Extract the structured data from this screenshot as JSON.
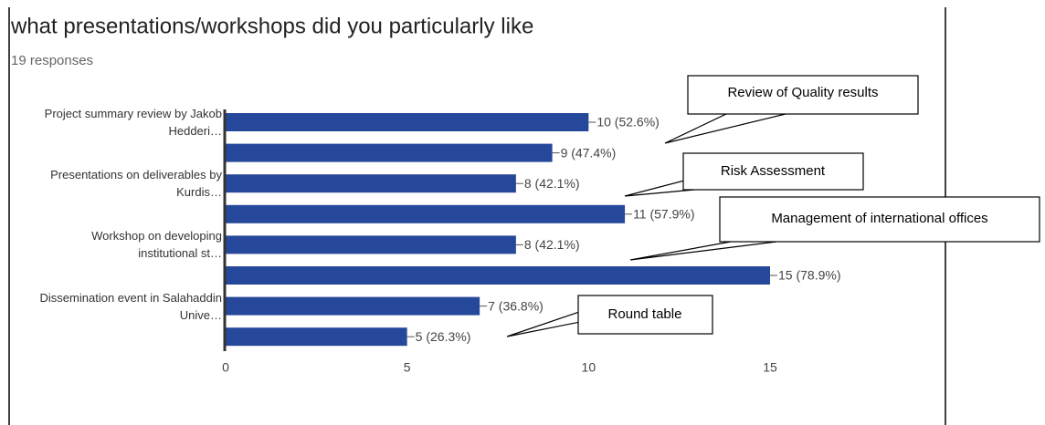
{
  "chart_data": {
    "type": "bar",
    "orientation": "horizontal",
    "title": "what presentations/workshops did you particularly like",
    "subtitle": "19 responses",
    "categories": [
      "Project summary review by Jakob Hedderi…",
      null,
      "Presentations on deliverables by Kurdis…",
      null,
      "Workshop on developing institutional st…",
      null,
      "Dissemination event in Salahaddin Unive…",
      null
    ],
    "values": [
      10,
      9,
      8,
      11,
      8,
      15,
      7,
      5
    ],
    "value_labels": [
      "10 (52.6%)",
      "9 (47.4%)",
      "8 (42.1%)",
      "11 (57.9%)",
      "8 (42.1%)",
      "15 (78.9%)",
      "7 (36.8%)",
      "5 (26.3%)"
    ],
    "color": "#26489a",
    "xlim": [
      0,
      15
    ],
    "xticks": [
      0,
      5,
      10,
      15
    ],
    "annotations": [
      "Review of Quality results",
      "Risk Assessment",
      "Management of international offices",
      "Round table"
    ]
  }
}
